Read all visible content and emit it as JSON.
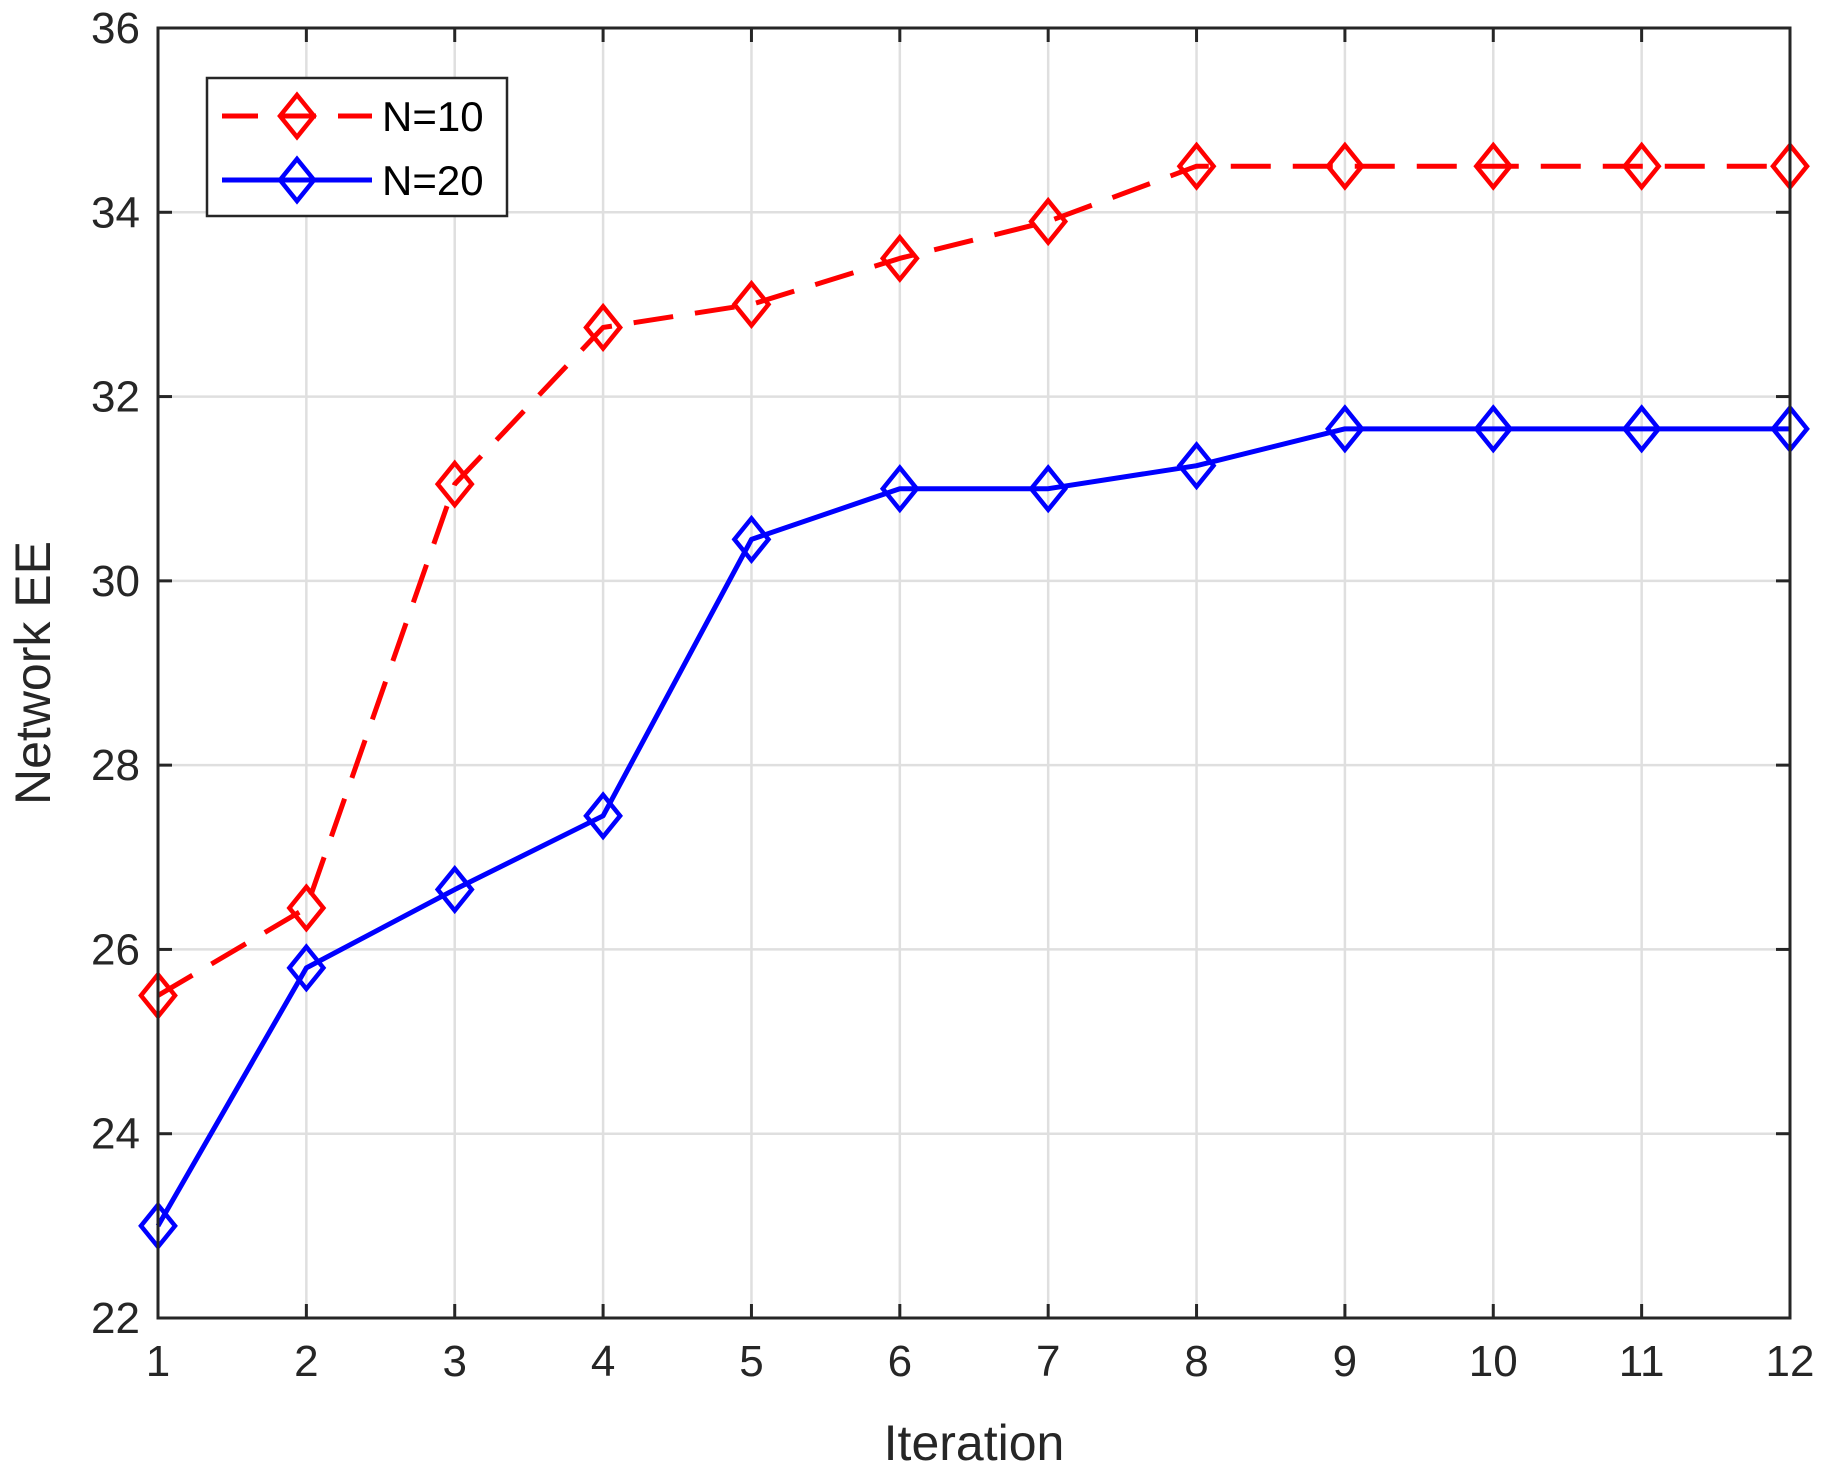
{
  "chart_data": {
    "type": "line",
    "title": "",
    "xlabel": "Iteration",
    "ylabel": "Network EE",
    "xlim": [
      1,
      12
    ],
    "ylim": [
      22,
      36
    ],
    "xticks": [
      1,
      2,
      3,
      4,
      5,
      6,
      7,
      8,
      9,
      10,
      11,
      12
    ],
    "yticks": [
      22,
      24,
      26,
      28,
      30,
      32,
      34,
      36
    ],
    "grid": true,
    "legend_position": "top-left",
    "x": [
      1,
      2,
      3,
      4,
      5,
      6,
      7,
      8,
      9,
      10,
      11,
      12
    ],
    "series": [
      {
        "name": "N=10",
        "color": "#ff0000",
        "line_style": "dashed",
        "marker": "diamond",
        "values": [
          25.5,
          26.45,
          31.05,
          32.75,
          33.0,
          33.5,
          33.9,
          34.5,
          34.5,
          34.5,
          34.5,
          34.5
        ]
      },
      {
        "name": "N=20",
        "color": "#0000ff",
        "line_style": "solid",
        "marker": "diamond",
        "values": [
          23.0,
          25.8,
          26.65,
          27.45,
          30.45,
          31.0,
          31.0,
          31.25,
          31.65,
          31.65,
          31.65,
          31.65
        ]
      }
    ]
  }
}
